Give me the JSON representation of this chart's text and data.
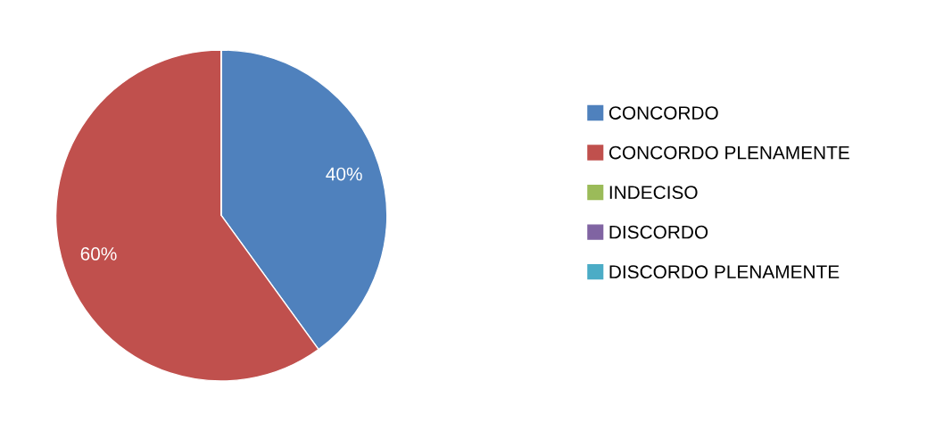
{
  "chart_data": {
    "type": "pie",
    "categories": [
      "CONCORDO",
      "CONCORDO PLENAMENTE",
      "INDECISO",
      "DISCORDO",
      "DISCORDO PLENAMENTE"
    ],
    "values": [
      40,
      60,
      0,
      0,
      0
    ],
    "colors": [
      "#4f81bd",
      "#c0504d",
      "#9bbb59",
      "#8064a2",
      "#4bacc6"
    ],
    "value_labels": [
      "40%",
      "60%",
      null,
      null,
      null
    ],
    "legend": "right"
  }
}
